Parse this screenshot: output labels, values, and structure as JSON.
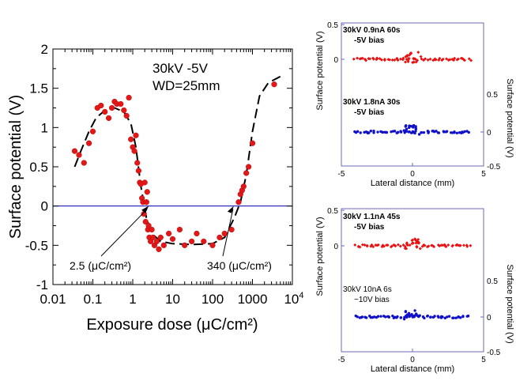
{
  "chart_data": [
    {
      "type": "scatter",
      "xlabel": "Exposure dose (μC/cm²)",
      "ylabel": "Surface potential (V)",
      "xscale": "log",
      "xlim": [
        0.01,
        10000
      ],
      "ylim": [
        -1,
        2
      ],
      "x_ticks": [
        "0.01",
        "0.1",
        "1",
        "10",
        "100",
        "1000",
        "10⁴"
      ],
      "y_ticks": [
        "-1",
        "-0.5",
        "0",
        "0.5",
        "1",
        "1.5",
        "2"
      ],
      "condition_text": [
        "30kV  -5V",
        "WD=25mm"
      ],
      "annotations": [
        "2.5 (μC/cm²)",
        "340 (μC/cm²)"
      ],
      "annotation_points": [
        [
          2.5,
          0
        ],
        [
          340,
          0
        ]
      ],
      "zero_line": true,
      "points": [
        [
          0.035,
          0.7
        ],
        [
          0.045,
          0.65
        ],
        [
          0.06,
          0.55
        ],
        [
          0.08,
          0.8
        ],
        [
          0.1,
          0.95
        ],
        [
          0.13,
          1.25
        ],
        [
          0.16,
          1.28
        ],
        [
          0.2,
          1.2
        ],
        [
          0.25,
          1.12
        ],
        [
          0.3,
          1.25
        ],
        [
          0.35,
          1.33
        ],
        [
          0.4,
          1.3
        ],
        [
          0.5,
          1.3
        ],
        [
          0.6,
          1.22
        ],
        [
          0.7,
          1.15
        ],
        [
          0.8,
          1.38
        ],
        [
          0.9,
          0.85
        ],
        [
          1.0,
          0.75
        ],
        [
          1.1,
          0.7
        ],
        [
          1.2,
          0.9
        ],
        [
          1.3,
          0.55
        ],
        [
          1.4,
          0.45
        ],
        [
          1.5,
          0.3
        ],
        [
          1.6,
          0.28
        ],
        [
          1.7,
          0.1
        ],
        [
          1.8,
          0.05
        ],
        [
          1.9,
          -0.1
        ],
        [
          2.0,
          0.3
        ],
        [
          2.1,
          -0.2
        ],
        [
          2.2,
          0.05
        ],
        [
          2.3,
          0.18
        ],
        [
          2.4,
          -0.3
        ],
        [
          2.5,
          -0.25
        ],
        [
          2.6,
          -0.4
        ],
        [
          2.8,
          -0.45
        ],
        [
          3.0,
          -0.3
        ],
        [
          3.2,
          -0.4
        ],
        [
          3.5,
          -0.5
        ],
        [
          4.0,
          -0.45
        ],
        [
          4.5,
          -0.55
        ],
        [
          5,
          -0.4
        ],
        [
          6,
          -0.5
        ],
        [
          8,
          -0.35
        ],
        [
          10,
          -0.42
        ],
        [
          15,
          -0.3
        ],
        [
          20,
          -0.5
        ],
        [
          30,
          -0.45
        ],
        [
          40,
          -0.35
        ],
        [
          60,
          -0.45
        ],
        [
          100,
          -0.5
        ],
        [
          150,
          -0.4
        ],
        [
          200,
          -0.35
        ],
        [
          300,
          -0.3
        ],
        [
          450,
          0.05
        ],
        [
          500,
          0.15
        ],
        [
          550,
          0.2
        ],
        [
          600,
          0.25
        ],
        [
          700,
          0.42
        ],
        [
          800,
          0.5
        ],
        [
          1000,
          0.8
        ],
        [
          3500,
          1.55
        ]
      ],
      "fit_curve": [
        [
          0.035,
          0.5
        ],
        [
          0.05,
          0.7
        ],
        [
          0.08,
          0.95
        ],
        [
          0.12,
          1.12
        ],
        [
          0.2,
          1.22
        ],
        [
          0.35,
          1.25
        ],
        [
          0.6,
          1.2
        ],
        [
          0.9,
          1.05
        ],
        [
          1.2,
          0.75
        ],
        [
          1.6,
          0.25
        ],
        [
          2.2,
          -0.15
        ],
        [
          3,
          -0.35
        ],
        [
          5,
          -0.45
        ],
        [
          10,
          -0.48
        ],
        [
          30,
          -0.49
        ],
        [
          100,
          -0.48
        ],
        [
          200,
          -0.4
        ],
        [
          350,
          -0.15
        ],
        [
          500,
          0.05
        ],
        [
          700,
          0.4
        ],
        [
          1000,
          0.95
        ],
        [
          1500,
          1.4
        ],
        [
          2500,
          1.57
        ],
        [
          5000,
          1.65
        ]
      ]
    },
    {
      "type": "scatter",
      "xlabel": "Lateral distance (mm)",
      "ylabel_left": "Surface potential (V)",
      "ylabel_right": "Surface potential (V)",
      "xlim": [
        -5,
        5
      ],
      "x_ticks": [
        "-5",
        "0",
        "5"
      ],
      "y_ticks_left": [
        "0",
        "0.5"
      ],
      "y_ticks_right": [
        "-0.5",
        "0",
        "0.5"
      ],
      "series": [
        {
          "label": [
            "30kV 0.9nA 60s",
            "-5V bias"
          ],
          "color": "#e81010",
          "marker": "diamond"
        },
        {
          "label": [
            "30kV 1.8nA 30s",
            "-5V bias"
          ],
          "color": "#1010c8",
          "marker": "circle"
        }
      ]
    },
    {
      "type": "scatter",
      "xlabel": "Lateral distance (mm)",
      "ylabel_left": "Surface potential (V)",
      "ylabel_right": "Surface potential (V)",
      "xlim": [
        -5,
        5
      ],
      "x_ticks": [
        "-5",
        "0",
        "5"
      ],
      "y_ticks_left": [
        "0",
        "0.5"
      ],
      "y_ticks_right": [
        "-0.5",
        "0",
        "0.5"
      ],
      "series": [
        {
          "label": [
            "30kV 1.1nA 45s",
            "-5V bias"
          ],
          "color": "#e81010",
          "marker": "diamond"
        },
        {
          "label": [
            "30kV 10nA 6s",
            "−10V bias"
          ],
          "color": "#1010c8",
          "marker": "circle"
        }
      ]
    }
  ]
}
